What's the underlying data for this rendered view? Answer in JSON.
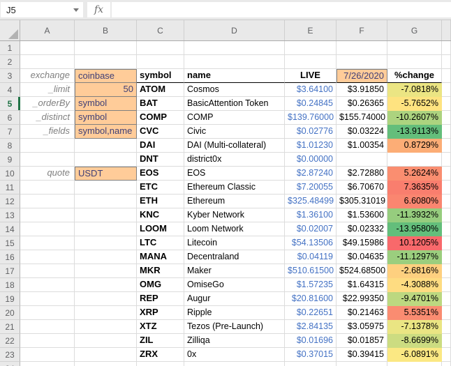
{
  "formula_bar": {
    "name_box_value": "J5",
    "fx_label": "fx",
    "formula_value": ""
  },
  "sheet": {
    "columns": [
      "A",
      "B",
      "C",
      "D",
      "E",
      "F",
      "G"
    ],
    "selected_row": 5,
    "visible_rows": 23
  },
  "params": {
    "3": {
      "label": "exchange",
      "value": "coinbase",
      "align": "left"
    },
    "4": {
      "label": "_limit",
      "value": "50",
      "align": "right"
    },
    "5": {
      "label": "_orderBy",
      "value": "symbol",
      "align": "left"
    },
    "6": {
      "label": "_distinct",
      "value": "symbol",
      "align": "left"
    },
    "7": {
      "label": "_fields",
      "value": "symbol,name",
      "align": "left"
    },
    "10": {
      "label": "quote",
      "value": "USDT",
      "align": "left"
    }
  },
  "table": {
    "headers": {
      "symbol": "symbol",
      "name": "name",
      "live": "LIVE",
      "date": "7/26/2020",
      "change": "%change"
    },
    "rows": [
      {
        "symbol": "ATOM",
        "name": "Cosmos",
        "live": "$3.64100",
        "date": "$3.91850",
        "change": "-7.0818%",
        "change_fill": "#EBE583"
      },
      {
        "symbol": "BAT",
        "name": "BasicAttention Token",
        "live": "$0.24845",
        "date": "$0.26365",
        "change": "-5.7652%",
        "change_fill": "#FEE380"
      },
      {
        "symbol": "COMP",
        "name": "COMP",
        "live": "$139.76000",
        "date": "$155.74000",
        "change": "-10.2607%",
        "change_fill": "#ACD37F"
      },
      {
        "symbol": "CVC",
        "name": "Civic",
        "live": "$0.02776",
        "date": "$0.03224",
        "change": "-13.9113%",
        "change_fill": "#64BE7B"
      },
      {
        "symbol": "DAI",
        "name": "DAI (Multi-collateral)",
        "live": "$1.01230",
        "date": "$1.00354",
        "change": "0.8729%",
        "change_fill": "#FCAD76"
      },
      {
        "symbol": "DNT",
        "name": "district0x",
        "live": "$0.00000",
        "date": "",
        "change": "",
        "change_fill": null
      },
      {
        "symbol": "EOS",
        "name": "EOS",
        "live": "$2.87240",
        "date": "$2.72880",
        "change": "5.2624%",
        "change_fill": "#FA8E70"
      },
      {
        "symbol": "ETC",
        "name": "Ethereum Classic",
        "live": "$7.20055",
        "date": "$6.70670",
        "change": "7.3635%",
        "change_fill": "#F97E6E"
      },
      {
        "symbol": "ETH",
        "name": "Ethereum",
        "live": "$325.48499",
        "date": "$305.31019",
        "change": "6.6080%",
        "change_fill": "#FA8670"
      },
      {
        "symbol": "KNC",
        "name": "Kyber Network",
        "live": "$1.36100",
        "date": "$1.53600",
        "change": "-11.3932%",
        "change_fill": "#96CD7E"
      },
      {
        "symbol": "LOOM",
        "name": "Loom Network",
        "live": "$0.02007",
        "date": "$0.02332",
        "change": "-13.9580%",
        "change_fill": "#63BE7B"
      },
      {
        "symbol": "LTC",
        "name": "Litecoin",
        "live": "$54.13506",
        "date": "$49.15986",
        "change": "10.1205%",
        "change_fill": "#F8696B"
      },
      {
        "symbol": "MANA",
        "name": "Decentraland",
        "live": "$0.04119",
        "date": "$0.04635",
        "change": "-11.1297%",
        "change_fill": "#9BCE7E"
      },
      {
        "symbol": "MKR",
        "name": "Maker",
        "live": "$510.61500",
        "date": "$524.68500",
        "change": "-2.6816%",
        "change_fill": "#FED07F"
      },
      {
        "symbol": "OMG",
        "name": "OmiseGo",
        "live": "$1.57235",
        "date": "$1.64315",
        "change": "-4.3088%",
        "change_fill": "#FEDC81"
      },
      {
        "symbol": "REP",
        "name": "Augur",
        "live": "$20.81600",
        "date": "$22.99350",
        "change": "-9.4701%",
        "change_fill": "#BCD880"
      },
      {
        "symbol": "XRP",
        "name": "Ripple",
        "live": "$0.22651",
        "date": "$0.21463",
        "change": "5.5351%",
        "change_fill": "#FA8C71"
      },
      {
        "symbol": "XTZ",
        "name": "Tezos (Pre-Launch)",
        "live": "$2.84135",
        "date": "$3.05975",
        "change": "-7.1378%",
        "change_fill": "#EAE583"
      },
      {
        "symbol": "ZIL",
        "name": "Zilliqa",
        "live": "$0.01696",
        "date": "$0.01857",
        "change": "-8.6699%",
        "change_fill": "#CCDC81"
      },
      {
        "symbol": "ZRX",
        "name": "0x",
        "live": "$0.37015",
        "date": "$0.39415",
        "change": "-6.0891%",
        "change_fill": "#FBE883"
      }
    ]
  },
  "colors": {
    "input_fill": "#FFCC99",
    "input_border": "#7F7F7F",
    "input_text": "#3F3F76",
    "live_text": "#4472C4",
    "selected_row_green": "#217346",
    "header_underline": "#000000",
    "scale_min_green": "#63BE7B",
    "scale_mid_yellow": "#FFEB84",
    "scale_max_red": "#F8696B"
  }
}
